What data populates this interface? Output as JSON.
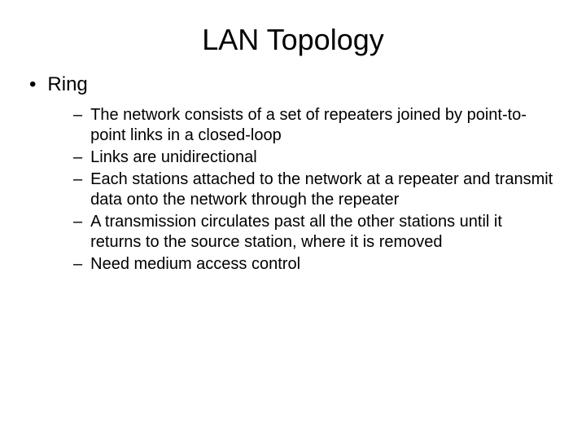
{
  "slide": {
    "title": "LAN Topology",
    "title_fontsize": 36,
    "title_color": "#000000",
    "background_color": "#ffffff",
    "bullet_l1": {
      "marker": "•",
      "text": "Ring",
      "fontsize": 24,
      "color": "#000000"
    },
    "bullets_l2": [
      {
        "marker": "–",
        "text": "The network consists of a set of repeaters joined by point-to-point links in a closed-loop"
      },
      {
        "marker": "–",
        "text": "Links are unidirectional"
      },
      {
        "marker": "–",
        "text": "Each stations attached to the network at a repeater and transmit data onto the network through the repeater"
      },
      {
        "marker": "–",
        "text": "A transmission circulates past all the other stations until it returns to the source station, where it is removed"
      },
      {
        "marker": "–",
        "text": "Need medium access control"
      }
    ],
    "l2_fontsize": 20,
    "l2_color": "#000000"
  }
}
